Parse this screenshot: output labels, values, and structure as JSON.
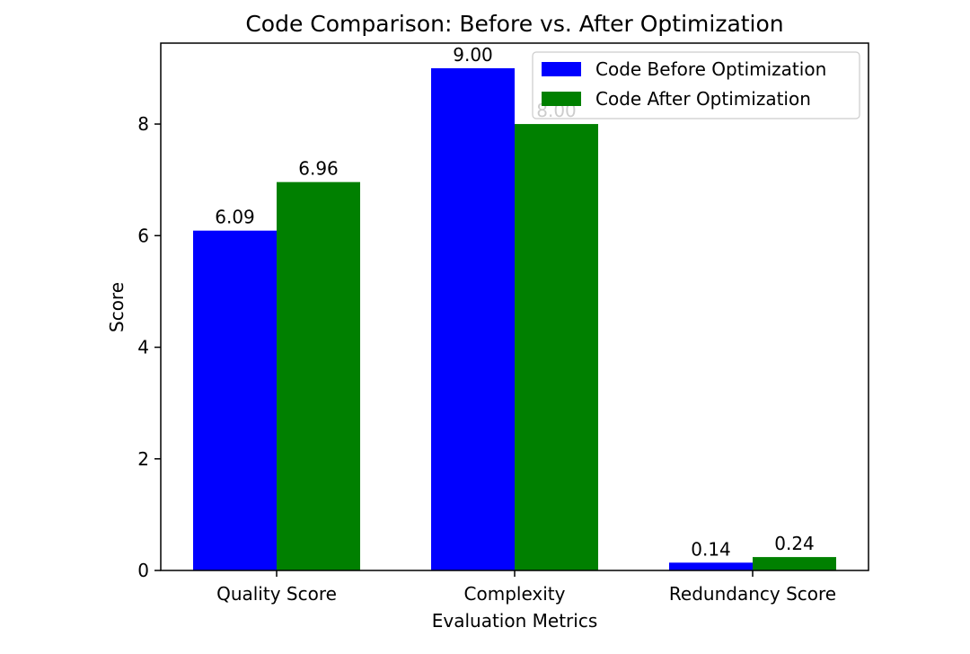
{
  "chart_data": {
    "type": "bar",
    "title": "Code Comparison: Before vs. After Optimization",
    "xlabel": "Evaluation Metrics",
    "ylabel": "Score",
    "categories": [
      "Quality Score",
      "Complexity",
      "Redundancy Score"
    ],
    "series": [
      {
        "name": "Code Before Optimization",
        "values": [
          6.09,
          9.0,
          0.14
        ],
        "labels": [
          "6.09",
          "9.00",
          "0.14"
        ],
        "color": "#0000ff"
      },
      {
        "name": "Code After Optimization",
        "values": [
          6.96,
          8.0,
          0.24
        ],
        "labels": [
          "6.96",
          "8.00",
          "0.24"
        ],
        "color": "#008000"
      }
    ],
    "ylim": [
      0,
      9.45
    ],
    "yticks": [
      0,
      2,
      4,
      6,
      8
    ],
    "ytick_labels": [
      "0",
      "2",
      "4",
      "6",
      "8"
    ],
    "grid": false,
    "legend_position": "top-right"
  }
}
